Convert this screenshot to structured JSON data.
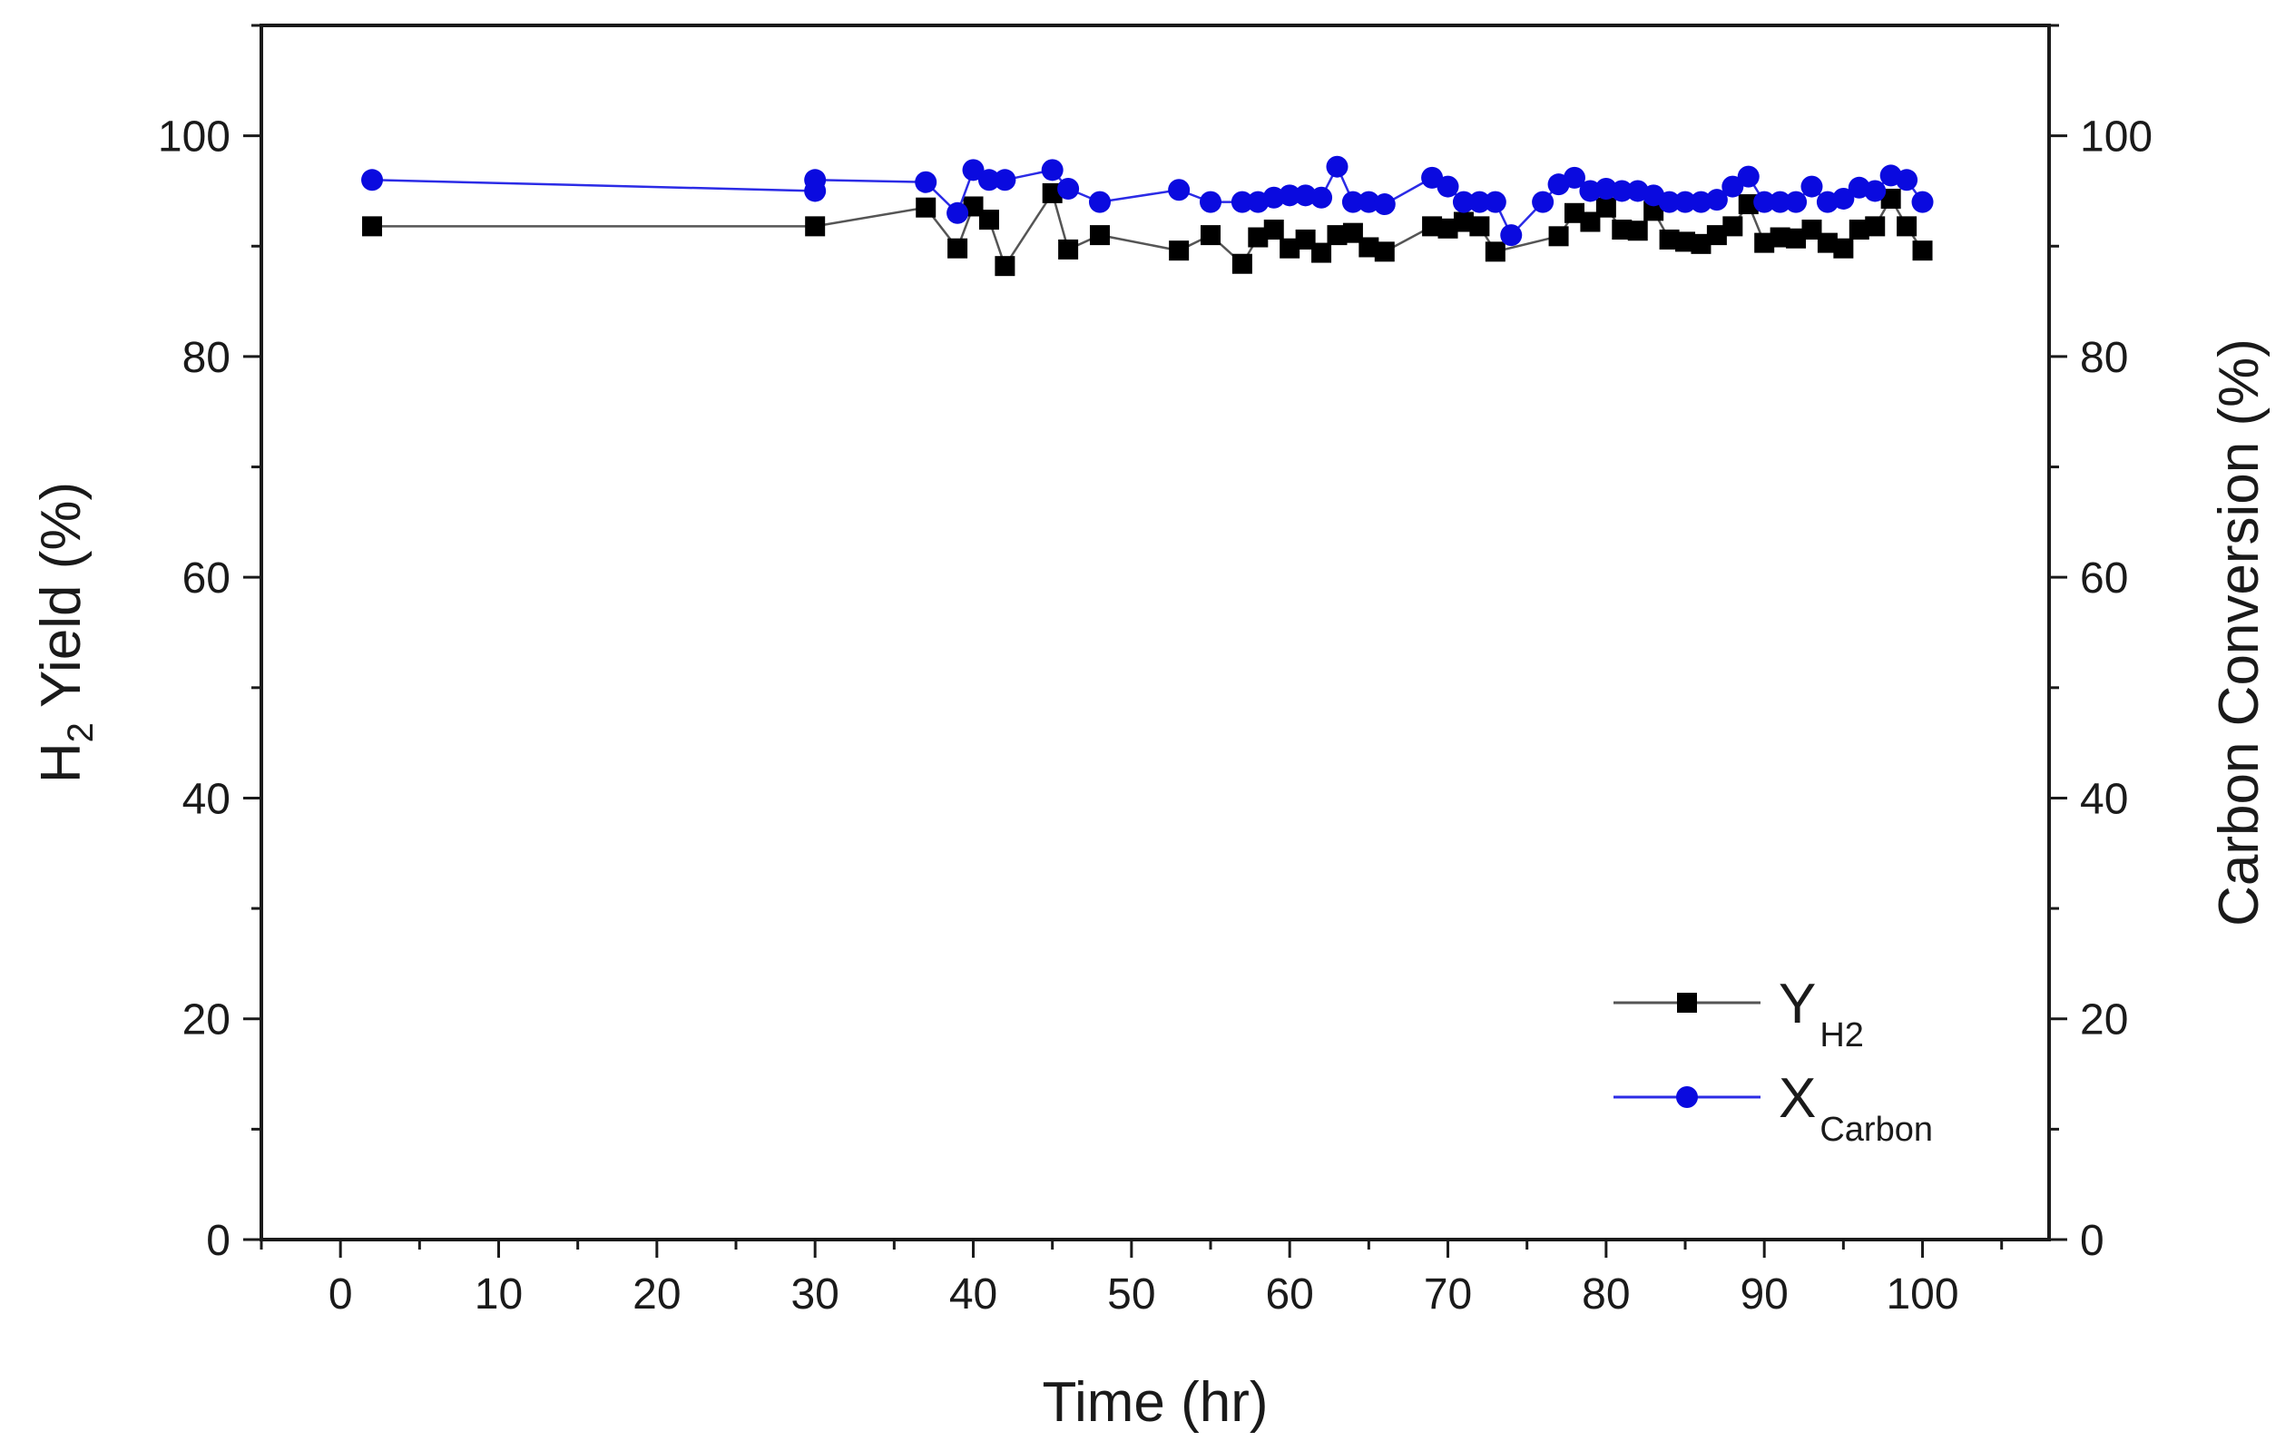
{
  "chart_data": {
    "type": "line",
    "xlabel": "Time (hr)",
    "ylabel_left": {
      "main": "H",
      "sub": "2",
      "rest": " Yield (%)"
    },
    "ylabel_right": "Carbon Conversion (%)",
    "xlim": [
      -5,
      108
    ],
    "ylim_left": [
      0,
      110
    ],
    "ylim_right": [
      0,
      110
    ],
    "x_ticks": [
      "0",
      "10",
      "20",
      "30",
      "40",
      "50",
      "60",
      "70",
      "80",
      "90",
      "100"
    ],
    "y_ticks": [
      "0",
      "20",
      "40",
      "60",
      "80",
      "100"
    ],
    "legend_position": "bottom-right",
    "grid": false,
    "series": [
      {
        "legend": {
          "main": "Y",
          "sub": "H2"
        },
        "axis": "left",
        "marker": "square",
        "color": "#000000",
        "line_color": "#555555",
        "x": [
          2,
          30,
          37,
          39,
          40,
          41,
          42,
          45,
          46,
          48,
          53,
          55,
          57,
          58,
          59,
          60,
          61,
          62,
          63,
          64,
          65,
          66,
          69,
          70,
          71,
          72,
          73,
          77,
          78,
          79,
          80,
          81,
          82,
          83,
          84,
          85,
          86,
          87,
          88,
          89,
          90,
          91,
          92,
          93,
          94,
          95,
          96,
          97,
          98,
          99,
          100
        ],
        "y": [
          91.8,
          91.8,
          93.5,
          89.8,
          93.6,
          92.4,
          88.2,
          94.8,
          89.7,
          91,
          89.6,
          91,
          88.4,
          90.8,
          91.5,
          89.8,
          90.6,
          89.4,
          91,
          91.2,
          89.9,
          89.5,
          91.8,
          91.6,
          92.2,
          91.8,
          89.5,
          90.9,
          93,
          92.2,
          93.5,
          91.5,
          91.4,
          93.2,
          90.6,
          90.4,
          90.2,
          91,
          91.8,
          93.8,
          90.3,
          90.8,
          90.7,
          91.5,
          90.3,
          89.8,
          91.5,
          91.8,
          94.3,
          91.8,
          89.6
        ]
      },
      {
        "legend": {
          "main": "X",
          "sub": "Carbon"
        },
        "axis": "right",
        "marker": "circle",
        "color": "#0a0adf",
        "line_color": "#2b2be6",
        "x": [
          2,
          30,
          30,
          37,
          39,
          40,
          41,
          42,
          45,
          46,
          48,
          53,
          55,
          57,
          58,
          59,
          60,
          61,
          62,
          63,
          64,
          65,
          66,
          69,
          70,
          71,
          72,
          73,
          74,
          76,
          77,
          78,
          79,
          80,
          81,
          82,
          83,
          84,
          85,
          86,
          87,
          88,
          89,
          90,
          91,
          92,
          93,
          94,
          95,
          96,
          97,
          98,
          99,
          100
        ],
        "y": [
          96,
          95,
          96,
          95.8,
          93,
          96.9,
          96,
          96,
          96.9,
          95.2,
          94,
          95.1,
          94,
          94,
          94,
          94.4,
          94.6,
          94.6,
          94.4,
          97.2,
          94,
          94,
          93.8,
          96.2,
          95.4,
          94,
          94,
          94,
          91,
          94,
          95.6,
          96.2,
          95,
          95.2,
          95,
          95,
          94.6,
          94,
          94,
          94,
          94.2,
          95.4,
          96.3,
          94,
          94,
          94,
          95.4,
          94,
          94.3,
          95.3,
          95,
          96.4,
          96,
          94
        ]
      }
    ]
  }
}
